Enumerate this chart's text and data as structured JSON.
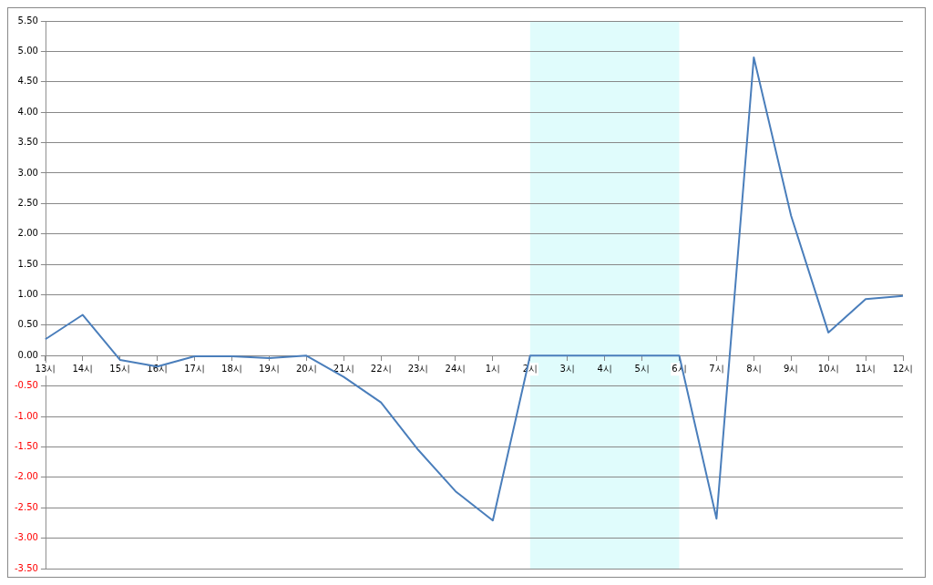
{
  "chart_data": {
    "type": "line",
    "categories": [
      "13시",
      "14시",
      "15시",
      "16시",
      "17시",
      "18시",
      "19시",
      "20시",
      "21시",
      "22시",
      "23시",
      "24시",
      "1시",
      "2시",
      "3시",
      "4시",
      "5시",
      "6시",
      "7시",
      "8시",
      "9시",
      "10시",
      "11시",
      "12시"
    ],
    "series": [
      {
        "color": "#4a7ebb",
        "values": [
          0.27,
          0.67,
          -0.07,
          -0.18,
          -0.01,
          -0.01,
          -0.04,
          0.0,
          -0.35,
          -0.77,
          -1.55,
          -2.23,
          -2.71,
          0,
          0,
          0,
          0,
          0,
          -2.68,
          4.9,
          2.3,
          0.38,
          0.93,
          0.98
        ]
      }
    ],
    "ylim": [
      -3.5,
      5.5
    ],
    "yticks": [
      {
        "value": -3.5,
        "label": "-3.50"
      },
      {
        "value": -3,
        "label": "-3.00"
      },
      {
        "value": -2.5,
        "label": "-2.50"
      },
      {
        "value": -2,
        "label": "-2.00"
      },
      {
        "value": -1.5,
        "label": "-1.50"
      },
      {
        "value": -1,
        "label": "-1.00"
      },
      {
        "value": -0.5,
        "label": "-0.50"
      },
      {
        "value": 0,
        "label": "0.00"
      },
      {
        "value": 0.5,
        "label": "0.50"
      },
      {
        "value": 1,
        "label": "1.00"
      },
      {
        "value": 1.5,
        "label": "1.50"
      },
      {
        "value": 2,
        "label": "2.00"
      },
      {
        "value": 2.5,
        "label": "2.50"
      },
      {
        "value": 3,
        "label": "3.00"
      },
      {
        "value": 3.5,
        "label": "3.50"
      },
      {
        "value": 4,
        "label": "4.00"
      },
      {
        "value": 4.5,
        "label": "4.50"
      },
      {
        "value": 5,
        "label": "5.00"
      },
      {
        "value": 5.5,
        "label": "5.50"
      }
    ],
    "bands": [
      {
        "axis": "x",
        "from": "2시",
        "to": "6시",
        "color": "#e0fcfc"
      }
    ],
    "grid": "y",
    "legend": false,
    "marker": "none",
    "line_style": "solid"
  }
}
